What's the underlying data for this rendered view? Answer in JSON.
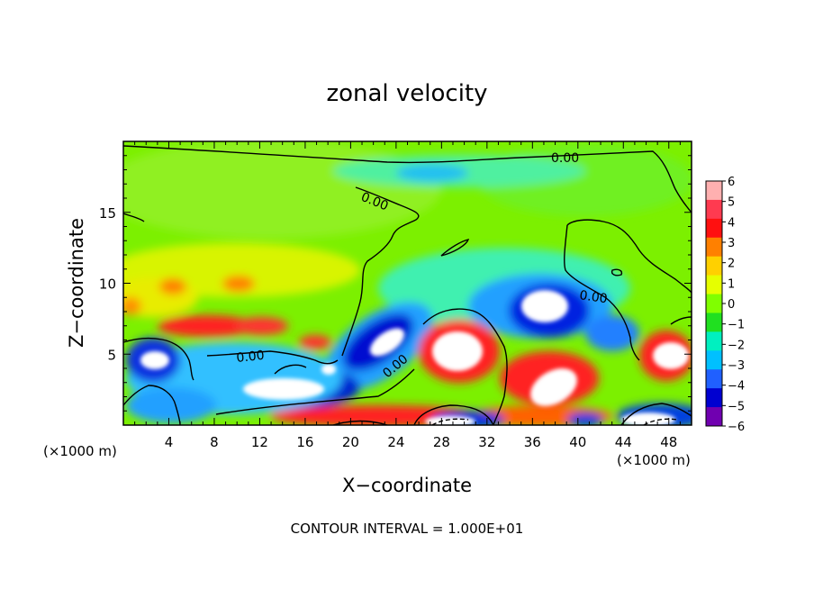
{
  "chart_data": {
    "type": "heatmap",
    "title": "zonal velocity",
    "xlabel": "X−coordinate",
    "ylabel": "Z−coordinate",
    "x_unit_left": "(×1000 m)",
    "x_unit_right": "(×1000 m)",
    "xlim": [
      0,
      50
    ],
    "ylim": [
      0,
      20
    ],
    "xticks": [
      4,
      8,
      12,
      16,
      20,
      24,
      28,
      32,
      36,
      40,
      44,
      48
    ],
    "yticks": [
      5,
      10,
      15
    ],
    "contour_labels": [
      "0.00",
      "0.00",
      "0.00",
      "0.00",
      "0.00"
    ],
    "footer": "CONTOUR INTERVAL = 1.000E+01",
    "colorbar": {
      "labels": [
        "6",
        "5",
        "4",
        "3",
        "2",
        "1",
        "0",
        "−1",
        "−2",
        "−3",
        "−4",
        "−5",
        "−6"
      ],
      "values": [
        6,
        5,
        4,
        3,
        2,
        1,
        0,
        -1,
        -2,
        -3,
        -4,
        -5,
        -6
      ],
      "colors": [
        "#ffb0b0",
        "#ff3a50",
        "#ff1010",
        "#ff8000",
        "#ffd000",
        "#e6ff00",
        "#80ff00",
        "#20e020",
        "#00f0c0",
        "#00c0ff",
        "#2060ff",
        "#0000d0",
        "#7000b0"
      ]
    },
    "features": [
      {
        "x": 24,
        "z": 18,
        "value": -2
      },
      {
        "x": 38,
        "z": 8.2,
        "value": -5
      },
      {
        "x": 23,
        "z": 6,
        "value": -5
      },
      {
        "x": 14,
        "z": 2.8,
        "value": -5
      },
      {
        "x": 3,
        "z": 4.3,
        "value": -4
      },
      {
        "x": 31,
        "z": 5,
        "value": 5
      },
      {
        "x": 37,
        "z": 2.6,
        "value": 5
      },
      {
        "x": 47,
        "z": 5,
        "value": 5
      },
      {
        "x": 10,
        "z": 6.8,
        "value": 4
      },
      {
        "x": 7,
        "z": 10,
        "value": 3
      },
      {
        "x": 10,
        "z": 10.5,
        "value": 3
      },
      {
        "x": 28,
        "z": 0.5,
        "value": 5
      },
      {
        "x": 45,
        "z": 0.5,
        "value": -4
      }
    ]
  }
}
